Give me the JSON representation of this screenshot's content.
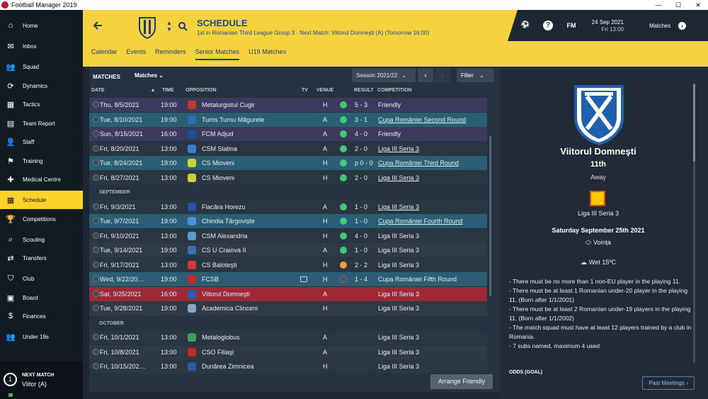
{
  "window": {
    "title": "Football Manager 2019",
    "minimize": "—",
    "maximize": "☐",
    "close": "✕"
  },
  "sidebar": {
    "items": [
      {
        "label": "Home",
        "icon": "home-icon"
      },
      {
        "label": "Inbox",
        "icon": "inbox-icon"
      },
      {
        "label": "Squad",
        "icon": "squad-icon"
      },
      {
        "label": "Dynamics",
        "icon": "dynamics-icon"
      },
      {
        "label": "Tactics",
        "icon": "tactics-icon"
      },
      {
        "label": "Team Report",
        "icon": "report-icon"
      },
      {
        "label": "Staff",
        "icon": "staff-icon"
      },
      {
        "label": "Training",
        "icon": "training-icon"
      },
      {
        "label": "Medical Centre",
        "icon": "medical-icon"
      },
      {
        "label": "Schedule",
        "icon": "calendar-icon"
      },
      {
        "label": "Competitions",
        "icon": "trophy-icon"
      },
      {
        "label": "Scouting",
        "icon": "scouting-icon"
      },
      {
        "label": "Transfers",
        "icon": "transfers-icon"
      },
      {
        "label": "Club",
        "icon": "club-icon"
      },
      {
        "label": "Board",
        "icon": "board-icon"
      },
      {
        "label": "Finances",
        "icon": "finances-icon"
      },
      {
        "label": "Under 19s",
        "icon": "under19-icon"
      }
    ],
    "next_match": {
      "label": "NEXT MATCH",
      "opponent": "Viitor (A)",
      "ring": "1"
    }
  },
  "header": {
    "title": "SCHEDULE",
    "subtitle": "1st in Romanian Third League Group 3 - Next Match: Viitorul Domneşti (A) (Tomorrow 16:00)",
    "tabs": [
      "Calendar",
      "Events",
      "Reminders",
      "Senior Matches",
      "U19 Matches"
    ],
    "active_tab": "Senior Matches",
    "date": "24 Sep 2021",
    "time": "Fri 13:00",
    "fm": "FM",
    "help": "?",
    "matches_label": "Matches"
  },
  "list": {
    "title": "MATCHES",
    "view_dropdown": "Matches",
    "season": "Season 2021/22",
    "filter": "Filter",
    "prev": "‹",
    "next": "›",
    "columns": {
      "date": "DATE",
      "time": "TIME",
      "opposition": "OPPOSITION",
      "tv": "TV",
      "venue": "VENUE",
      "result": "RESULT",
      "competition": "COMPETITION"
    },
    "months": [
      "SEPTEMBER",
      "OCTOBER"
    ],
    "rows": [
      {
        "date": "Thu, 8/5/2021",
        "time": "19:00",
        "opp": "Metalurgistul Cugir",
        "venue": "H",
        "result": "5 - 3",
        "comp": "Friendly",
        "kind": "friendly",
        "outcome": "win",
        "link": false,
        "badge": "#c0392b"
      },
      {
        "date": "Tue, 8/10/2021",
        "time": "19:00",
        "opp": "Turris Turnu Măgurele",
        "venue": "A",
        "result": "3 - 1",
        "comp": "Cupa României Second Round",
        "kind": "cup",
        "outcome": "win",
        "link": true,
        "badge": "#2e6db4"
      },
      {
        "date": "Sun, 8/15/2021",
        "time": "16:00",
        "opp": "FCM Adjud",
        "venue": "A",
        "result": "4 - 0",
        "comp": "Friendly",
        "kind": "friendly",
        "outcome": "win",
        "link": false,
        "badge": "#1f4f9c"
      },
      {
        "date": "Fri, 8/20/2021",
        "time": "13:00",
        "opp": "CSM Slatina",
        "venue": "A",
        "result": "2 - 0",
        "comp": "Liga III Seria 3",
        "kind": "league",
        "outcome": "win",
        "link": true,
        "badge": "#3a7bd5"
      },
      {
        "date": "Tue, 8/24/2021",
        "time": "19:00",
        "opp": "CS Mioveni",
        "venue": "H",
        "result": "p 0 - 0",
        "comp": "Cupa României Third Round",
        "kind": "cup",
        "outcome": "win",
        "link": true,
        "badge": "#c8d43a"
      },
      {
        "date": "Fri, 8/27/2021",
        "time": "13:00",
        "opp": "CS Mioveni",
        "venue": "H",
        "result": "2 - 0",
        "comp": "Liga III Seria 3",
        "kind": "league",
        "outcome": "win",
        "link": true,
        "badge": "#c8d43a"
      },
      {
        "date": "Fri, 9/3/2021",
        "time": "13:00",
        "opp": "Flacăra Horezu",
        "venue": "A",
        "result": "1 - 0",
        "comp": "Liga III Seria 3",
        "kind": "league",
        "outcome": "win",
        "link": true,
        "badge": "#2750a8"
      },
      {
        "date": "Tue, 9/7/2021",
        "time": "19:00",
        "opp": "Chindia Târgovişte",
        "venue": "H",
        "result": "1 - 0",
        "comp": "Cupa României Fourth Round",
        "kind": "cup",
        "outcome": "win",
        "link": true,
        "badge": "#4a90d9"
      },
      {
        "date": "Fri, 9/10/2021",
        "time": "13:00",
        "opp": "CSM Alexandria",
        "venue": "H",
        "result": "4 - 0",
        "comp": "Liga III Seria 3",
        "kind": "league",
        "outcome": "win",
        "link": false,
        "badge": "#5b9bd5"
      },
      {
        "date": "Tue, 9/14/2021",
        "time": "19:00",
        "opp": "CS U Craiova II",
        "venue": "A",
        "result": "1 - 0",
        "comp": "Liga III Seria 3",
        "kind": "alt",
        "outcome": "win",
        "link": false,
        "badge": "#3d6fb6"
      },
      {
        "date": "Fri, 9/17/2021",
        "time": "13:00",
        "opp": "CS Baloteşti",
        "venue": "H",
        "result": "2 - 2",
        "comp": "Liga III Seria 3",
        "kind": "league",
        "outcome": "draw",
        "link": false,
        "badge": "#d9363e"
      },
      {
        "date": "Wed, 9/22/20…",
        "time": "19:00",
        "opp": "FCSB",
        "venue": "H",
        "result": "1 - 4",
        "comp": "Cupa României Fifth Round",
        "kind": "cup",
        "outcome": "loss",
        "link": false,
        "badge": "#c62828",
        "tv": true
      },
      {
        "date": "Sat, 9/25/2021",
        "time": "16:00",
        "opp": "Viitorul Domneşti",
        "venue": "A",
        "result": "",
        "comp": "Liga III Seria 3",
        "kind": "sel",
        "outcome": "",
        "link": false,
        "badge": "#1f5fb0"
      },
      {
        "date": "Tue, 9/28/2021",
        "time": "19:00",
        "opp": "Academica Clinceni",
        "venue": "H",
        "result": "",
        "comp": "Liga III Seria 3",
        "kind": "alt",
        "outcome": "",
        "link": false,
        "badge": "#8aa4c6"
      },
      {
        "date": "Fri, 10/1/2021",
        "time": "13:00",
        "opp": "Metaloglobus",
        "venue": "A",
        "result": "",
        "comp": "Liga III Seria 3",
        "kind": "league",
        "outcome": "",
        "link": false,
        "badge": "#3aa655"
      },
      {
        "date": "Fri, 10/8/2021",
        "time": "13:00",
        "opp": "CSO Filiaşi",
        "venue": "A",
        "result": "",
        "comp": "Liga III Seria 3",
        "kind": "alt",
        "outcome": "",
        "link": false,
        "badge": "#c62828"
      },
      {
        "date": "Fri, 10/15/202…",
        "time": "13:00",
        "opp": "Dunărea Zimnicea",
        "venue": "H",
        "result": "",
        "comp": "Liga III Seria 3",
        "kind": "league",
        "outcome": "",
        "link": false,
        "badge": "#2c5aa0"
      }
    ],
    "arrange_button": "Arrange Friendly"
  },
  "side": {
    "team": "Viitorul Domneşti",
    "position": "11th",
    "venue": "Away",
    "league": "Liga III Seria 3",
    "match_date": "Saturday September 25th 2021",
    "stadium": "Voința",
    "weather": "Wet 15ºC",
    "rules": [
      "- There must be no more than 1 non-EU player in the playing 11.",
      "- There must be at least 1 Romanian under-20 player in the playing 11. (Born after 1/1/2001)",
      "- There must be at least 2 Romanian under-19 players in the playing 11. (Born after 1/1/2002)",
      "- The match squad must have at least 12 players trained by a club in Romania.",
      "- 7 subs named, maximum 4 used"
    ],
    "odds_label": "ODDS (GOAL)",
    "past_meetings": "Past Meetings"
  },
  "colors": {
    "accent": "#f5d33f",
    "navy": "#1d4a8a",
    "win": "#3ec97b",
    "draw": "#e6a23c",
    "loss": "#e04a4a",
    "selected_row": "#9b2a36"
  }
}
